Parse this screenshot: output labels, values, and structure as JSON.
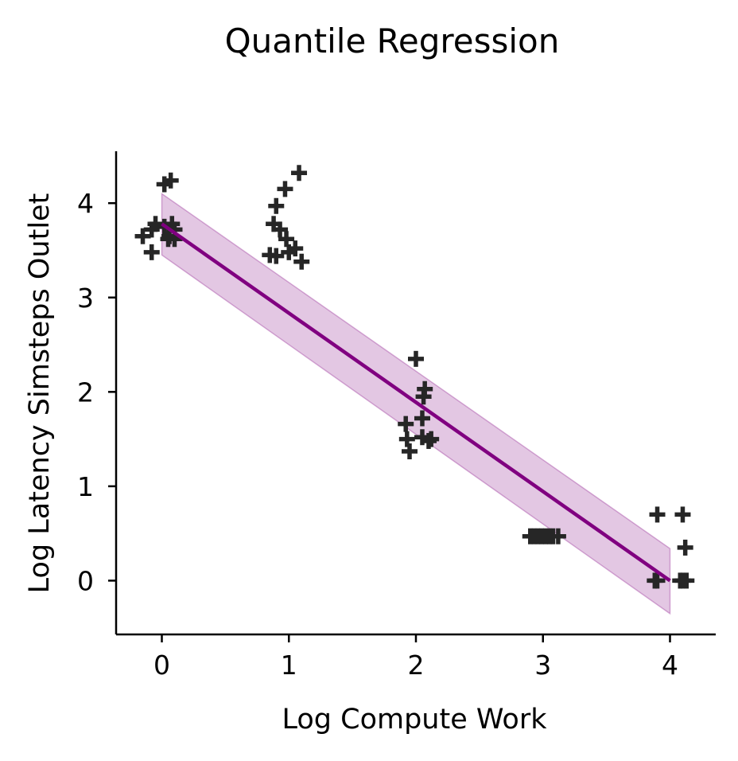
{
  "chart_data": {
    "type": "scatter",
    "title": "Quantile Regression",
    "xlabel": "Log Compute Work",
    "ylabel": "Log Latency Simsteps Outlet",
    "xlim": [
      -0.36,
      4.36
    ],
    "ylim": [
      -0.57,
      4.55
    ],
    "xticks": [
      0,
      1,
      2,
      3,
      4
    ],
    "yticks": [
      0,
      1,
      2,
      3,
      4
    ],
    "grid": false,
    "marker": "plus",
    "marker_color": "#262626",
    "line_color": "#800080",
    "band_color": "#800080",
    "series": [
      {
        "type": "scatter",
        "points": [
          [
            -0.15,
            3.65
          ],
          [
            -0.08,
            3.72
          ],
          [
            -0.05,
            3.78
          ],
          [
            -0.08,
            3.48
          ],
          [
            0.02,
            3.75
          ],
          [
            0.05,
            3.62
          ],
          [
            0.08,
            3.78
          ],
          [
            0.06,
            3.65
          ],
          [
            0.1,
            3.72
          ],
          [
            0.02,
            4.2
          ],
          [
            0.07,
            4.24
          ],
          [
            0.1,
            3.62
          ],
          [
            0.85,
            3.45
          ],
          [
            0.9,
            3.44
          ],
          [
            0.88,
            3.78
          ],
          [
            0.93,
            3.72
          ],
          [
            0.98,
            3.62
          ],
          [
            1.0,
            3.48
          ],
          [
            1.05,
            3.52
          ],
          [
            1.1,
            3.38
          ],
          [
            0.9,
            3.97
          ],
          [
            0.97,
            4.15
          ],
          [
            1.08,
            4.32
          ],
          [
            1.92,
            1.66
          ],
          [
            1.93,
            1.5
          ],
          [
            1.95,
            1.37
          ],
          [
            2.0,
            2.35
          ],
          [
            2.05,
            1.72
          ],
          [
            2.06,
            1.95
          ],
          [
            2.07,
            2.03
          ],
          [
            2.05,
            1.52
          ],
          [
            2.1,
            1.48
          ],
          [
            2.12,
            1.5
          ],
          [
            2.9,
            0.47
          ],
          [
            2.93,
            0.47
          ],
          [
            2.96,
            0.47
          ],
          [
            2.99,
            0.47
          ],
          [
            3.02,
            0.47
          ],
          [
            3.05,
            0.47
          ],
          [
            3.08,
            0.47
          ],
          [
            3.12,
            0.47
          ],
          [
            3.88,
            0.0
          ],
          [
            3.9,
            0.0
          ],
          [
            4.08,
            0.0
          ],
          [
            4.1,
            0.0
          ],
          [
            4.13,
            0.0
          ],
          [
            3.9,
            0.7
          ],
          [
            4.1,
            0.7
          ],
          [
            4.12,
            0.35
          ]
        ]
      },
      {
        "type": "line",
        "x": [
          0,
          4
        ],
        "y": [
          3.78,
          0.0
        ]
      },
      {
        "type": "area",
        "x": [
          0,
          4
        ],
        "upper": [
          4.1,
          0.34
        ],
        "lower": [
          3.45,
          -0.35
        ]
      }
    ]
  }
}
